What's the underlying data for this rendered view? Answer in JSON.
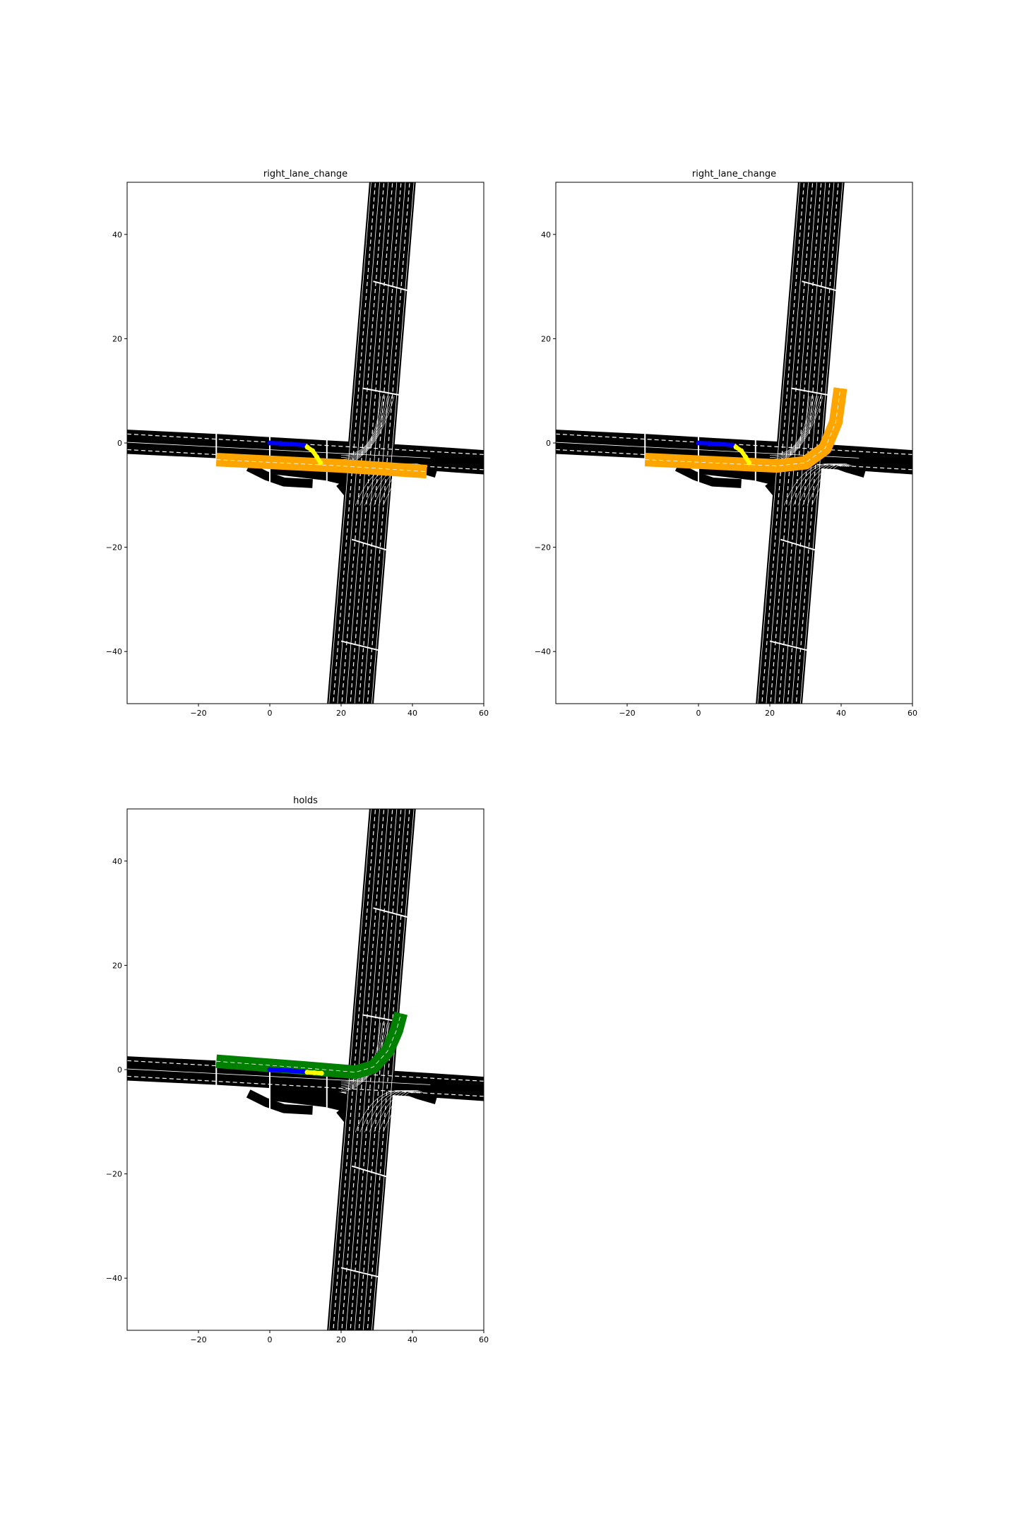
{
  "chart_data": [
    {
      "type": "scatter",
      "title": "right_lane_change",
      "xlim": [
        -40,
        60
      ],
      "ylim": [
        -50,
        50
      ],
      "xticks": [
        -20,
        0,
        20,
        40,
        60
      ],
      "yticks": [
        -40,
        -20,
        0,
        20,
        40
      ],
      "xtick_labels": [
        "−20",
        "0",
        "20",
        "40",
        "60"
      ],
      "ytick_labels": [
        "−40",
        "−20",
        "0",
        "20",
        "40"
      ],
      "highlight_color": "#ffa500",
      "highlight_path": [
        [
          -15,
          -3.2
        ],
        [
          20,
          -4.4
        ],
        [
          44,
          -5.5
        ]
      ],
      "history": {
        "color": "#0000ff",
        "points": [
          [
            0,
            0
          ],
          [
            3,
            -0.1
          ],
          [
            6,
            -0.2
          ],
          [
            9.5,
            -0.4
          ]
        ]
      },
      "prediction": {
        "color": "#ffff00",
        "points": [
          [
            10.5,
            -0.8
          ],
          [
            12,
            -1.5
          ],
          [
            13.2,
            -2.7
          ],
          [
            14.2,
            -3.8
          ]
        ]
      }
    },
    {
      "type": "scatter",
      "title": "right_lane_change",
      "xlim": [
        -40,
        60
      ],
      "ylim": [
        -50,
        50
      ],
      "xticks": [
        -20,
        0,
        20,
        40,
        60
      ],
      "yticks": [
        -40,
        -20,
        0,
        20,
        40
      ],
      "xtick_labels": [
        "−20",
        "0",
        "20",
        "40",
        "60"
      ],
      "ytick_labels": [
        "−40",
        "−20",
        "0",
        "20",
        "40"
      ],
      "highlight_color": "#ffa500",
      "highlight_path": [
        [
          -15,
          -3.2
        ],
        [
          22,
          -4.4
        ],
        [
          30,
          -3.8
        ],
        [
          35.5,
          -1.0
        ],
        [
          38.5,
          4
        ],
        [
          39.8,
          10.5
        ]
      ],
      "history": {
        "color": "#0000ff",
        "points": [
          [
            0,
            0
          ],
          [
            3,
            -0.1
          ],
          [
            6,
            -0.2
          ],
          [
            9.5,
            -0.4
          ]
        ]
      },
      "prediction": {
        "color": "#ffff00",
        "points": [
          [
            10.5,
            -0.8
          ],
          [
            12,
            -1.5
          ],
          [
            13.2,
            -2.7
          ],
          [
            14.2,
            -3.8
          ]
        ]
      }
    },
    {
      "type": "scatter",
      "title": "holds",
      "xlim": [
        -40,
        60
      ],
      "ylim": [
        -50,
        50
      ],
      "xticks": [
        -20,
        0,
        20,
        40,
        60
      ],
      "yticks": [
        -40,
        -20,
        0,
        20,
        40
      ],
      "xtick_labels": [
        "−20",
        "0",
        "20",
        "40",
        "60"
      ],
      "ytick_labels": [
        "−40",
        "−20",
        "0",
        "20",
        "40"
      ],
      "highlight_color": "#008000",
      "highlight_path": [
        [
          -15,
          1.6
        ],
        [
          10,
          0.3
        ],
        [
          24,
          -0.5
        ],
        [
          29,
          0.5
        ],
        [
          33,
          3.5
        ],
        [
          35.5,
          7.5
        ],
        [
          36.8,
          10.8
        ]
      ],
      "history": {
        "color": "#0000ff",
        "points": [
          [
            0,
            0
          ],
          [
            3,
            -0.1
          ],
          [
            6,
            -0.2
          ],
          [
            9.5,
            -0.4
          ]
        ]
      },
      "prediction": {
        "color": "#ffff00",
        "points": [
          [
            10.5,
            -0.5
          ],
          [
            12.5,
            -0.6
          ],
          [
            14.5,
            -0.7
          ]
        ]
      }
    }
  ]
}
